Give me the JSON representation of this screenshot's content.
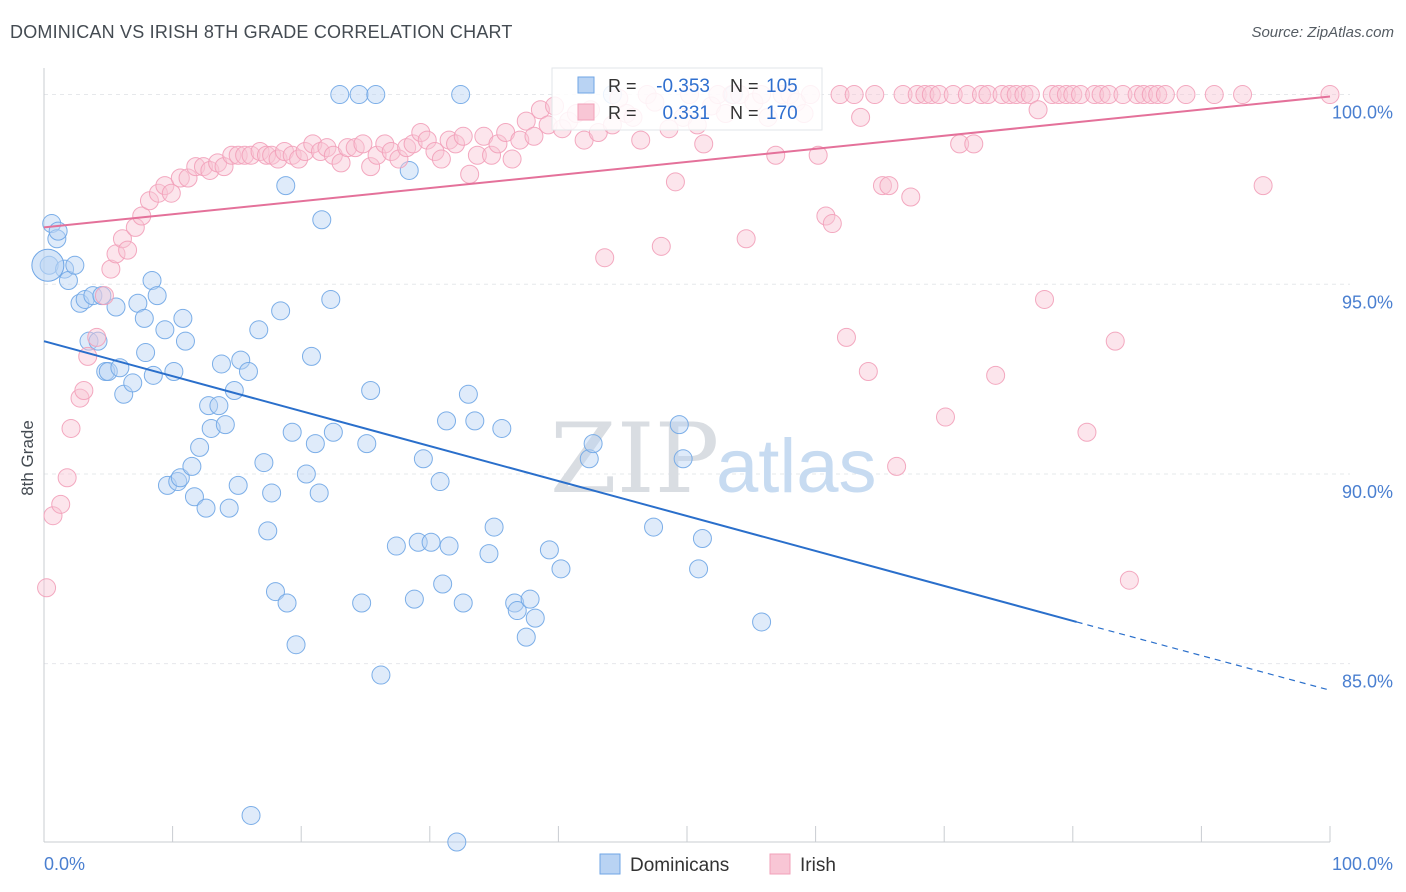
{
  "title": "DOMINICAN VS IRISH 8TH GRADE CORRELATION CHART",
  "source": "Source: ZipAtlas.com",
  "watermark": {
    "zip": "ZIP",
    "atlas": "atlas"
  },
  "chart_data": {
    "type": "scatter",
    "xlabel": "",
    "ylabel": "8th Grade",
    "xlim": [
      0,
      100
    ],
    "ylim": [
      80.3,
      100.7
    ],
    "x_tick_labels": [
      {
        "value": 0,
        "label": "0.0%"
      },
      {
        "value": 100,
        "label": "100.0%"
      }
    ],
    "y_tick_labels": [
      {
        "value": 100,
        "label": "100.0%"
      },
      {
        "value": 95,
        "label": "95.0%"
      },
      {
        "value": 90,
        "label": "90.0%"
      },
      {
        "value": 85,
        "label": "85.0%"
      }
    ],
    "grid": true,
    "legend_position": "bottom",
    "colors": {
      "dominicans": "#6fa6e6",
      "irish": "#f2a0b9",
      "dominicans_line": "#2a6fcb",
      "irish_line": "#e4719a",
      "stat_value": "#2f6fcf"
    },
    "stats": [
      {
        "series": "Dominicans",
        "r_label": "R =",
        "r": "-0.353",
        "n_label": "N =",
        "n": "105"
      },
      {
        "series": "Irish",
        "r_label": "R =",
        "r": "0.331",
        "n_label": "N =",
        "n": "170"
      }
    ],
    "series": [
      {
        "name": "Dominicans",
        "trend": {
          "x0": 0,
          "y0": 93.5,
          "x1": 80.3,
          "y1": 86.1,
          "x_dash_end": 100,
          "y_dash_end": 84.3
        },
        "points": [
          [
            0.4,
            95.5
          ],
          [
            0.6,
            96.6
          ],
          [
            1.0,
            96.2
          ],
          [
            1.1,
            96.4
          ],
          [
            1.6,
            95.4
          ],
          [
            1.9,
            95.1
          ],
          [
            2.4,
            95.5
          ],
          [
            2.8,
            94.5
          ],
          [
            3.2,
            94.6
          ],
          [
            3.5,
            93.5
          ],
          [
            3.8,
            94.7
          ],
          [
            4.2,
            93.5
          ],
          [
            4.5,
            94.7
          ],
          [
            4.8,
            92.7
          ],
          [
            5.0,
            92.7
          ],
          [
            5.6,
            94.4
          ],
          [
            5.9,
            92.8
          ],
          [
            6.2,
            92.1
          ],
          [
            6.9,
            92.4
          ],
          [
            7.3,
            94.5
          ],
          [
            7.8,
            94.1
          ],
          [
            7.9,
            93.2
          ],
          [
            8.4,
            95.1
          ],
          [
            8.5,
            92.6
          ],
          [
            8.8,
            94.7
          ],
          [
            9.4,
            93.8
          ],
          [
            9.6,
            89.7
          ],
          [
            10.1,
            92.7
          ],
          [
            10.4,
            89.8
          ],
          [
            10.6,
            89.9
          ],
          [
            10.8,
            94.1
          ],
          [
            11.0,
            93.5
          ],
          [
            11.5,
            90.2
          ],
          [
            11.7,
            89.4
          ],
          [
            12.1,
            90.7
          ],
          [
            12.6,
            89.1
          ],
          [
            12.8,
            91.8
          ],
          [
            13.0,
            91.2
          ],
          [
            13.6,
            91.8
          ],
          [
            13.8,
            92.9
          ],
          [
            14.1,
            91.3
          ],
          [
            14.4,
            89.1
          ],
          [
            14.8,
            92.2
          ],
          [
            15.1,
            89.7
          ],
          [
            15.3,
            93.0
          ],
          [
            15.9,
            92.7
          ],
          [
            16.1,
            81.0
          ],
          [
            16.7,
            93.8
          ],
          [
            17.1,
            90.3
          ],
          [
            17.4,
            88.5
          ],
          [
            17.7,
            89.5
          ],
          [
            18.0,
            86.9
          ],
          [
            18.4,
            94.3
          ],
          [
            18.8,
            97.6
          ],
          [
            18.9,
            86.6
          ],
          [
            19.3,
            91.1
          ],
          [
            19.6,
            85.5
          ],
          [
            20.4,
            90.0
          ],
          [
            20.8,
            93.1
          ],
          [
            21.1,
            90.8
          ],
          [
            21.4,
            89.5
          ],
          [
            21.6,
            96.7
          ],
          [
            22.3,
            94.6
          ],
          [
            22.5,
            91.1
          ],
          [
            23.0,
            100.0
          ],
          [
            24.5,
            100.0
          ],
          [
            24.7,
            86.6
          ],
          [
            25.1,
            90.8
          ],
          [
            25.4,
            92.2
          ],
          [
            25.8,
            100.0
          ],
          [
            26.2,
            84.7
          ],
          [
            27.4,
            88.1
          ],
          [
            28.4,
            98.0
          ],
          [
            28.8,
            86.7
          ],
          [
            29.1,
            88.2
          ],
          [
            29.5,
            90.4
          ],
          [
            30.1,
            88.2
          ],
          [
            30.8,
            89.8
          ],
          [
            31.0,
            87.1
          ],
          [
            31.3,
            91.4
          ],
          [
            31.5,
            88.1
          ],
          [
            32.1,
            80.3
          ],
          [
            32.4,
            100.0
          ],
          [
            32.6,
            86.6
          ],
          [
            33.0,
            92.1
          ],
          [
            33.5,
            91.4
          ],
          [
            34.6,
            87.9
          ],
          [
            35.0,
            88.6
          ],
          [
            35.6,
            91.2
          ],
          [
            36.6,
            86.6
          ],
          [
            36.8,
            86.4
          ],
          [
            37.5,
            85.7
          ],
          [
            37.8,
            86.7
          ],
          [
            38.2,
            86.2
          ],
          [
            39.3,
            88.0
          ],
          [
            40.2,
            87.5
          ],
          [
            42.4,
            90.4
          ],
          [
            42.7,
            90.8
          ],
          [
            44.2,
            100.0
          ],
          [
            47.4,
            88.6
          ],
          [
            49.4,
            91.3
          ],
          [
            49.7,
            90.4
          ],
          [
            50.9,
            87.5
          ],
          [
            51.2,
            88.3
          ],
          [
            53.6,
            100.0
          ],
          [
            55.8,
            86.1
          ]
        ]
      },
      {
        "name": "Irish",
        "trend": {
          "x0": 0,
          "y0": 96.5,
          "x1": 100,
          "y1": 99.95
        },
        "points": [
          [
            0.2,
            87.0
          ],
          [
            0.7,
            88.9
          ],
          [
            1.3,
            89.2
          ],
          [
            1.8,
            89.9
          ],
          [
            2.1,
            91.2
          ],
          [
            2.8,
            92.0
          ],
          [
            3.1,
            92.2
          ],
          [
            3.4,
            93.1
          ],
          [
            4.1,
            93.6
          ],
          [
            4.7,
            94.7
          ],
          [
            5.2,
            95.4
          ],
          [
            5.6,
            95.8
          ],
          [
            6.1,
            96.2
          ],
          [
            6.5,
            95.9
          ],
          [
            7.1,
            96.5
          ],
          [
            7.6,
            96.8
          ],
          [
            8.2,
            97.2
          ],
          [
            8.9,
            97.4
          ],
          [
            9.4,
            97.6
          ],
          [
            9.9,
            97.4
          ],
          [
            10.6,
            97.8
          ],
          [
            11.2,
            97.8
          ],
          [
            11.8,
            98.1
          ],
          [
            12.4,
            98.1
          ],
          [
            12.9,
            98.0
          ],
          [
            13.5,
            98.2
          ],
          [
            14.0,
            98.1
          ],
          [
            14.6,
            98.4
          ],
          [
            15.1,
            98.4
          ],
          [
            15.6,
            98.4
          ],
          [
            16.1,
            98.4
          ],
          [
            16.8,
            98.5
          ],
          [
            17.3,
            98.4
          ],
          [
            17.7,
            98.4
          ],
          [
            18.2,
            98.3
          ],
          [
            18.7,
            98.5
          ],
          [
            19.3,
            98.4
          ],
          [
            19.8,
            98.3
          ],
          [
            20.3,
            98.5
          ],
          [
            20.9,
            98.7
          ],
          [
            21.5,
            98.5
          ],
          [
            22.0,
            98.6
          ],
          [
            22.5,
            98.4
          ],
          [
            23.1,
            98.2
          ],
          [
            23.6,
            98.6
          ],
          [
            24.2,
            98.6
          ],
          [
            24.8,
            98.7
          ],
          [
            25.4,
            98.1
          ],
          [
            25.9,
            98.4
          ],
          [
            26.5,
            98.7
          ],
          [
            27.0,
            98.5
          ],
          [
            27.6,
            98.3
          ],
          [
            28.2,
            98.6
          ],
          [
            28.7,
            98.7
          ],
          [
            29.3,
            99.0
          ],
          [
            29.8,
            98.8
          ],
          [
            30.4,
            98.5
          ],
          [
            30.9,
            98.3
          ],
          [
            31.5,
            98.8
          ],
          [
            32.0,
            98.7
          ],
          [
            32.6,
            98.9
          ],
          [
            33.1,
            97.9
          ],
          [
            33.7,
            98.4
          ],
          [
            34.2,
            98.9
          ],
          [
            34.8,
            98.4
          ],
          [
            35.3,
            98.7
          ],
          [
            35.9,
            99.0
          ],
          [
            36.4,
            98.3
          ],
          [
            37.0,
            98.8
          ],
          [
            37.5,
            99.3
          ],
          [
            38.1,
            98.9
          ],
          [
            38.6,
            99.6
          ],
          [
            39.2,
            99.2
          ],
          [
            39.7,
            99.7
          ],
          [
            40.3,
            99.1
          ],
          [
            40.8,
            99.3
          ],
          [
            41.4,
            99.5
          ],
          [
            42.0,
            98.8
          ],
          [
            42.5,
            99.6
          ],
          [
            43.1,
            99.0
          ],
          [
            43.6,
            95.7
          ],
          [
            44.2,
            99.2
          ],
          [
            44.7,
            99.9
          ],
          [
            45.3,
            99.5
          ],
          [
            45.8,
            99.4
          ],
          [
            46.4,
            98.8
          ],
          [
            46.9,
            100.0
          ],
          [
            47.5,
            99.8
          ],
          [
            48.0,
            96.0
          ],
          [
            48.6,
            99.1
          ],
          [
            49.1,
            97.7
          ],
          [
            49.7,
            99.4
          ],
          [
            50.2,
            100.0
          ],
          [
            50.8,
            99.2
          ],
          [
            51.3,
            98.7
          ],
          [
            51.9,
            99.7
          ],
          [
            52.4,
            100.0
          ],
          [
            53.0,
            99.5
          ],
          [
            53.5,
            100.0
          ],
          [
            54.1,
            100.0
          ],
          [
            54.6,
            96.2
          ],
          [
            55.2,
            99.8
          ],
          [
            55.8,
            100.0
          ],
          [
            56.3,
            99.4
          ],
          [
            56.9,
            98.4
          ],
          [
            57.4,
            100.0
          ],
          [
            58.0,
            100.0
          ],
          [
            58.5,
            99.8
          ],
          [
            59.1,
            99.5
          ],
          [
            59.6,
            100.0
          ],
          [
            60.2,
            98.4
          ],
          [
            60.8,
            96.8
          ],
          [
            61.3,
            96.6
          ],
          [
            61.9,
            100.0
          ],
          [
            62.4,
            93.6
          ],
          [
            63.0,
            100.0
          ],
          [
            63.5,
            99.4
          ],
          [
            64.1,
            92.7
          ],
          [
            64.6,
            100.0
          ],
          [
            65.2,
            97.6
          ],
          [
            65.7,
            97.6
          ],
          [
            66.3,
            90.2
          ],
          [
            66.8,
            100.0
          ],
          [
            67.4,
            97.3
          ],
          [
            67.9,
            100.0
          ],
          [
            68.5,
            100.0
          ],
          [
            69.0,
            100.0
          ],
          [
            69.6,
            100.0
          ],
          [
            70.1,
            91.5
          ],
          [
            70.7,
            100.0
          ],
          [
            71.2,
            98.7
          ],
          [
            71.8,
            100.0
          ],
          [
            72.3,
            98.7
          ],
          [
            72.9,
            100.0
          ],
          [
            73.4,
            100.0
          ],
          [
            74.0,
            92.6
          ],
          [
            74.5,
            100.0
          ],
          [
            75.1,
            100.0
          ],
          [
            75.6,
            100.0
          ],
          [
            76.2,
            100.0
          ],
          [
            76.7,
            100.0
          ],
          [
            77.3,
            99.6
          ],
          [
            77.8,
            94.6
          ],
          [
            78.4,
            100.0
          ],
          [
            78.9,
            100.0
          ],
          [
            79.5,
            100.0
          ],
          [
            80.0,
            100.0
          ],
          [
            80.6,
            100.0
          ],
          [
            81.1,
            91.1
          ],
          [
            81.7,
            100.0
          ],
          [
            82.2,
            100.0
          ],
          [
            82.8,
            100.0
          ],
          [
            83.3,
            93.5
          ],
          [
            83.9,
            100.0
          ],
          [
            84.4,
            87.2
          ],
          [
            85.0,
            100.0
          ],
          [
            85.5,
            100.0
          ],
          [
            86.1,
            100.0
          ],
          [
            86.6,
            100.0
          ],
          [
            87.2,
            100.0
          ],
          [
            88.8,
            100.0
          ],
          [
            91.0,
            100.0
          ],
          [
            93.2,
            100.0
          ],
          [
            94.8,
            97.6
          ],
          [
            100.0,
            100.0
          ]
        ]
      }
    ]
  },
  "legend": {
    "items": [
      {
        "label": "Dominicans"
      },
      {
        "label": "Irish"
      }
    ]
  }
}
